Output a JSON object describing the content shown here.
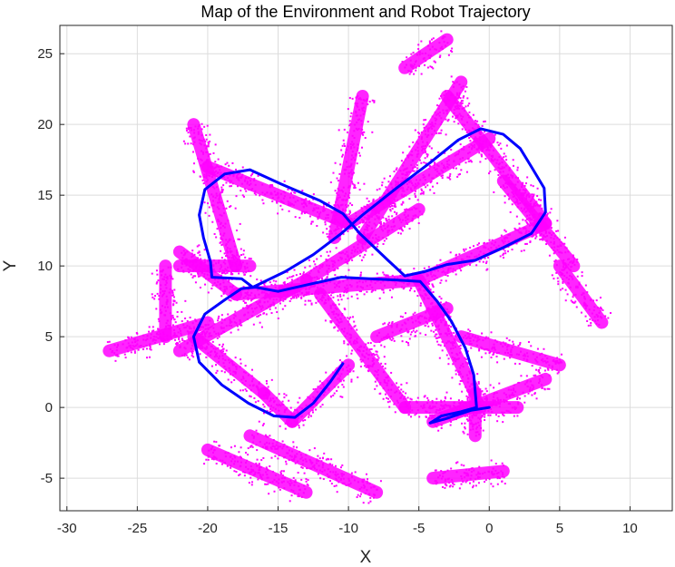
{
  "chart_data": {
    "type": "scatter",
    "title": "Map of the Environment and Robot Trajectory",
    "xlabel": "X",
    "ylabel": "Y",
    "xlim": [
      -30.5,
      13
    ],
    "ylim": [
      -7.3,
      27
    ],
    "xticks": [
      -30,
      -25,
      -20,
      -15,
      -10,
      -5,
      0,
      5,
      10
    ],
    "yticks": [
      -5,
      0,
      5,
      10,
      15,
      20,
      25
    ],
    "grid": true,
    "colors": {
      "map": "#ff00ff",
      "trajectory": "#0000ff",
      "grid": "#dcdcdc",
      "axis": "#262626"
    },
    "series": [
      {
        "kind": "map_walls",
        "segments": [
          [
            [
              -20,
              17
            ],
            [
              -10,
              13
            ]
          ],
          [
            [
              -10,
              13
            ],
            [
              0,
              19
            ]
          ],
          [
            [
              -3,
              22
            ],
            [
              4,
              13
            ]
          ],
          [
            [
              4,
              13
            ],
            [
              -5,
              9
            ]
          ],
          [
            [
              -5,
              9
            ],
            [
              -18,
              8
            ]
          ],
          [
            [
              -18,
              8
            ],
            [
              -22,
              11
            ]
          ],
          [
            [
              -21,
              20
            ],
            [
              -18,
              10
            ]
          ],
          [
            [
              -9,
              12
            ],
            [
              -2,
              23
            ]
          ],
          [
            [
              -22,
              10
            ],
            [
              -17,
              10
            ]
          ],
          [
            [
              -21,
              5
            ],
            [
              -16,
              1
            ]
          ],
          [
            [
              -16,
              1
            ],
            [
              -14,
              -1
            ]
          ],
          [
            [
              -14,
              -1
            ],
            [
              -10,
              3
            ]
          ],
          [
            [
              -12,
              8
            ],
            [
              -6,
              0
            ]
          ],
          [
            [
              -6,
              0
            ],
            [
              2,
              0
            ]
          ],
          [
            [
              -4,
              -1
            ],
            [
              4,
              2
            ]
          ],
          [
            [
              -17,
              -2
            ],
            [
              -8,
              -6
            ]
          ],
          [
            [
              -22,
              4
            ],
            [
              -13,
              9
            ]
          ],
          [
            [
              -13,
              9
            ],
            [
              -5,
              14
            ]
          ],
          [
            [
              -5,
              9
            ],
            [
              -1,
              1
            ]
          ],
          [
            [
              -1,
              1
            ],
            [
              -1,
              -2
            ]
          ],
          [
            [
              -23,
              10
            ],
            [
              -23,
              5
            ]
          ],
          [
            [
              -4,
              -5
            ],
            [
              1,
              -4.5
            ]
          ],
          [
            [
              1,
              16
            ],
            [
              6,
              10
            ]
          ],
          [
            [
              5,
              10
            ],
            [
              8,
              6
            ]
          ],
          [
            [
              -27,
              4
            ],
            [
              -20,
              6
            ]
          ],
          [
            [
              -11,
              12
            ],
            [
              -9,
              22
            ]
          ],
          [
            [
              -6,
              24
            ],
            [
              -3,
              26
            ]
          ],
          [
            [
              -20,
              -3
            ],
            [
              -13,
              -6
            ]
          ],
          [
            [
              -2,
              5
            ],
            [
              5,
              3
            ]
          ],
          [
            [
              -8,
              5
            ],
            [
              -3,
              7
            ]
          ]
        ]
      },
      {
        "kind": "trajectory",
        "points": [
          [
            -10.4,
            3.1
          ],
          [
            -11.3,
            1.8
          ],
          [
            -12.5,
            0.3
          ],
          [
            -13.8,
            -0.7
          ],
          [
            -15.3,
            -0.6
          ],
          [
            -17.1,
            0.3
          ],
          [
            -19,
            1.6
          ],
          [
            -20.6,
            3.2
          ],
          [
            -21,
            5
          ],
          [
            -20.2,
            6.6
          ],
          [
            -18.8,
            7.6
          ],
          [
            -17.6,
            8.4
          ],
          [
            -16.6,
            8.5
          ],
          [
            -15,
            8.2
          ],
          [
            -12.8,
            8.7
          ],
          [
            -10.5,
            9.2
          ],
          [
            -8.5,
            9.1
          ],
          [
            -6.5,
            9
          ],
          [
            -4.9,
            8.9
          ],
          [
            -3.7,
            7.5
          ],
          [
            -2.7,
            6.1
          ],
          [
            -1.7,
            4.2
          ],
          [
            -1.1,
            2.3
          ],
          [
            -0.9,
            0
          ],
          [
            -2,
            -0.3
          ],
          [
            -3.4,
            -0.6
          ],
          [
            -4.2,
            -1.1
          ],
          [
            -3.1,
            -0.8
          ],
          [
            -1.3,
            -0.2
          ],
          [
            0,
            0
          ]
        ]
      },
      {
        "kind": "trajectory",
        "points": [
          [
            -16.8,
            8.5
          ],
          [
            -14.5,
            9.6
          ],
          [
            -12.5,
            10.8
          ],
          [
            -10.5,
            12.3
          ],
          [
            -9,
            13.6
          ],
          [
            -6.6,
            15.5
          ],
          [
            -4.2,
            17.3
          ],
          [
            -2.2,
            18.9
          ],
          [
            -0.6,
            19.7
          ],
          [
            1,
            19.3
          ],
          [
            2.2,
            18.3
          ],
          [
            3,
            17
          ],
          [
            3.9,
            15.5
          ],
          [
            4,
            13.8
          ],
          [
            3,
            12.3
          ],
          [
            1,
            11.3
          ],
          [
            -1,
            10.4
          ],
          [
            -3,
            10.1
          ],
          [
            -4.6,
            9.6
          ],
          [
            -6,
            9.3
          ],
          [
            -7.2,
            10.4
          ],
          [
            -9.2,
            12.3
          ],
          [
            -10.4,
            13.7
          ],
          [
            -12,
            14.6
          ],
          [
            -14.8,
            15.8
          ],
          [
            -17,
            16.8
          ],
          [
            -18.8,
            16.5
          ],
          [
            -20.2,
            15.4
          ],
          [
            -20.6,
            13.6
          ],
          [
            -20.3,
            12
          ],
          [
            -19.8,
            10.3
          ],
          [
            -19.7,
            9.2
          ],
          [
            -17.6,
            9.1
          ],
          [
            -16.8,
            8.5
          ]
        ]
      }
    ]
  }
}
